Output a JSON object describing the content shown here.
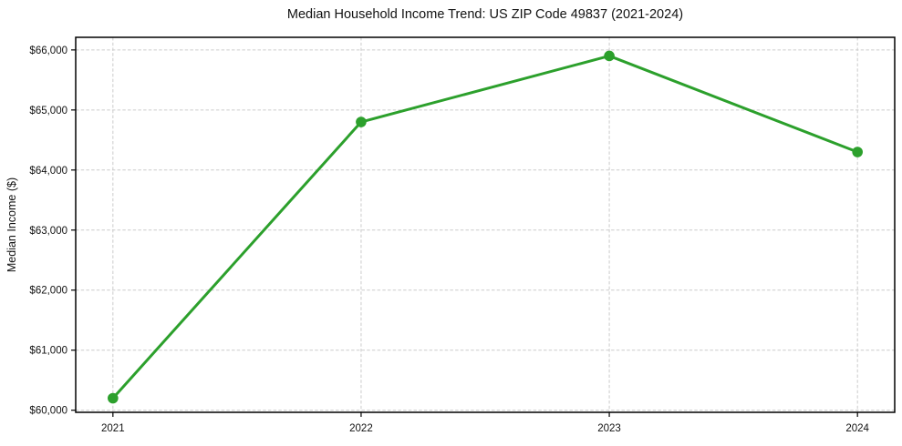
{
  "chart_data": {
    "type": "line",
    "title": "Median Household Income Trend: US ZIP Code 49837 (2021-2024)",
    "xlabel": "",
    "ylabel": "Median Income ($)",
    "x": [
      2021,
      2022,
      2023,
      2024
    ],
    "values": [
      60200,
      64800,
      65900,
      64300
    ],
    "xtick_labels": [
      "2021",
      "2022",
      "2023",
      "2024"
    ],
    "ytick_values": [
      60000,
      61000,
      62000,
      63000,
      64000,
      65000,
      66000
    ],
    "ytick_labels": [
      "$60,000",
      "$61,000",
      "$62,000",
      "$63,000",
      "$64,000",
      "$65,000",
      "$66,000"
    ],
    "xlim": [
      2020.85,
      2024.15
    ],
    "ylim": [
      59965,
      66210
    ],
    "grid": true,
    "grid_style": "dashed",
    "grid_color": "#cccccc",
    "legend": "none",
    "line_color": "#2ca02c",
    "marker": "circle",
    "marker_radius": 5.8,
    "line_width": 3,
    "spine_color": "#000000",
    "background_color": "#ffffff"
  }
}
